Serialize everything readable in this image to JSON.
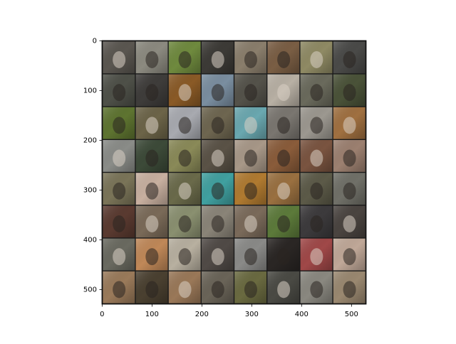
{
  "chart_data": {
    "type": "image",
    "xlim": [
      -0.5,
      529.5
    ],
    "ylim": [
      529.5,
      -0.5
    ],
    "xticks": [
      0,
      100,
      200,
      300,
      400,
      500
    ],
    "yticks": [
      0,
      100,
      200,
      300,
      400,
      500
    ]
  }
}
